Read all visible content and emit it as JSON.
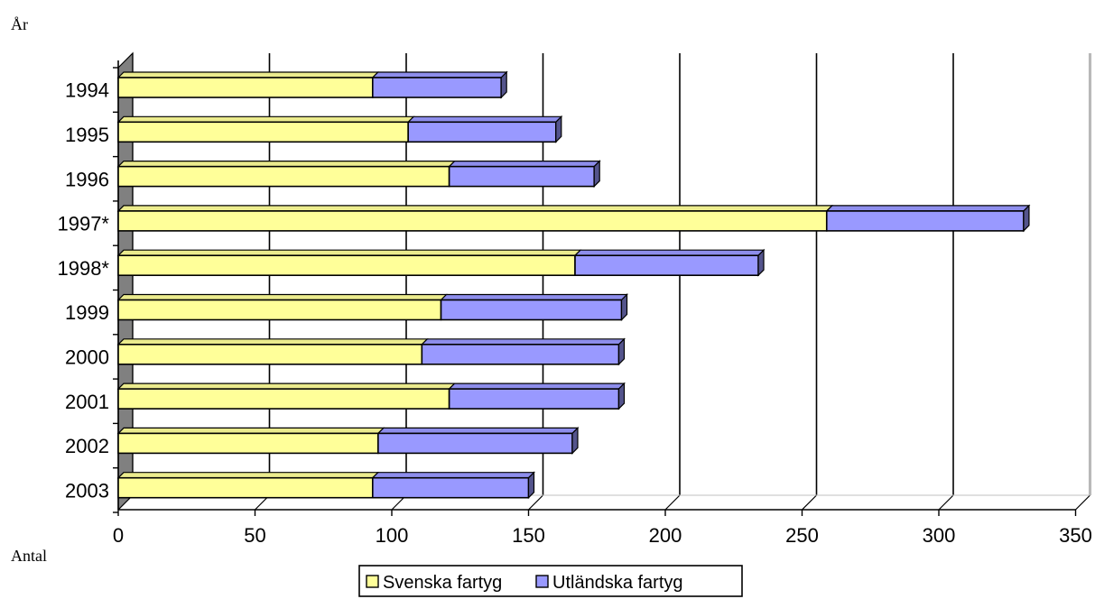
{
  "chart_data": {
    "type": "bar",
    "orientation": "horizontal",
    "stacked": true,
    "three_d": true,
    "categories": [
      "1994",
      "1995",
      "1996",
      "1997*",
      "1998*",
      "1999",
      "2000",
      "2001",
      "2002",
      "2003"
    ],
    "series": [
      {
        "name": "Svenska fartyg",
        "color": "#FFFF99",
        "values": [
          93,
          106,
          121,
          259,
          167,
          118,
          111,
          121,
          95,
          93
        ]
      },
      {
        "name": "Utländska fartyg",
        "color": "#9999FF",
        "values": [
          47,
          54,
          53,
          72,
          67,
          66,
          72,
          62,
          71,
          57
        ]
      }
    ],
    "xlabel": "Antal",
    "ylabel": "År",
    "xlim": [
      0,
      350
    ],
    "xticks": [
      "0",
      "50",
      "100",
      "150",
      "200",
      "250",
      "300",
      "350"
    ],
    "grid": true,
    "legend_position": "bottom"
  }
}
